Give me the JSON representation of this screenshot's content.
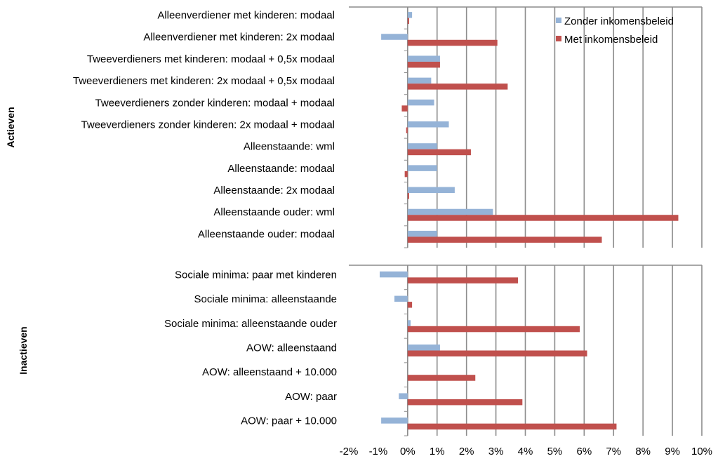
{
  "chart_data": {
    "type": "bar",
    "orientation": "horizontal",
    "x_ticks": [
      "-2%",
      "-1%",
      "0%",
      "1%",
      "2%",
      "3%",
      "4%",
      "5%",
      "6%",
      "7%",
      "8%",
      "9%",
      "10%"
    ],
    "xlim": [
      -2,
      10
    ],
    "grid": true,
    "legend": {
      "placement": "top-right",
      "entries": [
        "Zonder inkomensbeleid",
        "Met inkomensbeleid"
      ]
    },
    "colors": {
      "zonder": "#95b3d7",
      "met": "#c0504d",
      "grid": "#8c8c8c"
    },
    "panels": [
      {
        "group_label": "Actieven",
        "categories": [
          "Alleenverdiener met kinderen: modaal",
          "Alleenverdiener met kinderen: 2x modaal",
          "Tweeverdieners met kinderen: modaal + 0,5x modaal",
          "Tweeverdieners met kinderen: 2x modaal + 0,5x modaal",
          "Tweeverdieners zonder kinderen: modaal + modaal",
          "Tweeverdieners zonder kinderen: 2x modaal + modaal",
          "Alleenstaande: wml",
          "Alleenstaande: modaal",
          "Alleenstaande: 2x modaal",
          "Alleenstaande ouder: wml",
          "Alleenstaande ouder: modaal"
        ],
        "series": [
          {
            "name": "Zonder inkomensbeleid",
            "values": [
              0.15,
              -0.9,
              1.1,
              0.8,
              0.9,
              1.4,
              1.0,
              1.0,
              1.6,
              2.9,
              1.0
            ]
          },
          {
            "name": "Met inkomensbeleid",
            "values": [
              0.05,
              3.05,
              1.1,
              3.4,
              -0.2,
              -0.05,
              2.15,
              -0.1,
              0.05,
              9.2,
              6.6
            ]
          }
        ]
      },
      {
        "group_label": "Inactieven",
        "categories": [
          "Sociale minima: paar met kinderen",
          "Sociale minima: alleenstaande",
          "Sociale minima: alleenstaande ouder",
          "AOW: alleenstaand",
          "AOW: alleenstaand + 10.000",
          "AOW: paar",
          "AOW: paar + 10.000"
        ],
        "series": [
          {
            "name": "Zonder inkomensbeleid",
            "values": [
              -0.95,
              -0.45,
              0.1,
              1.1,
              0.0,
              -0.3,
              -0.9
            ]
          },
          {
            "name": "Met inkomensbeleid",
            "values": [
              3.75,
              0.15,
              5.85,
              6.1,
              2.3,
              3.9,
              7.1
            ]
          }
        ]
      }
    ]
  }
}
